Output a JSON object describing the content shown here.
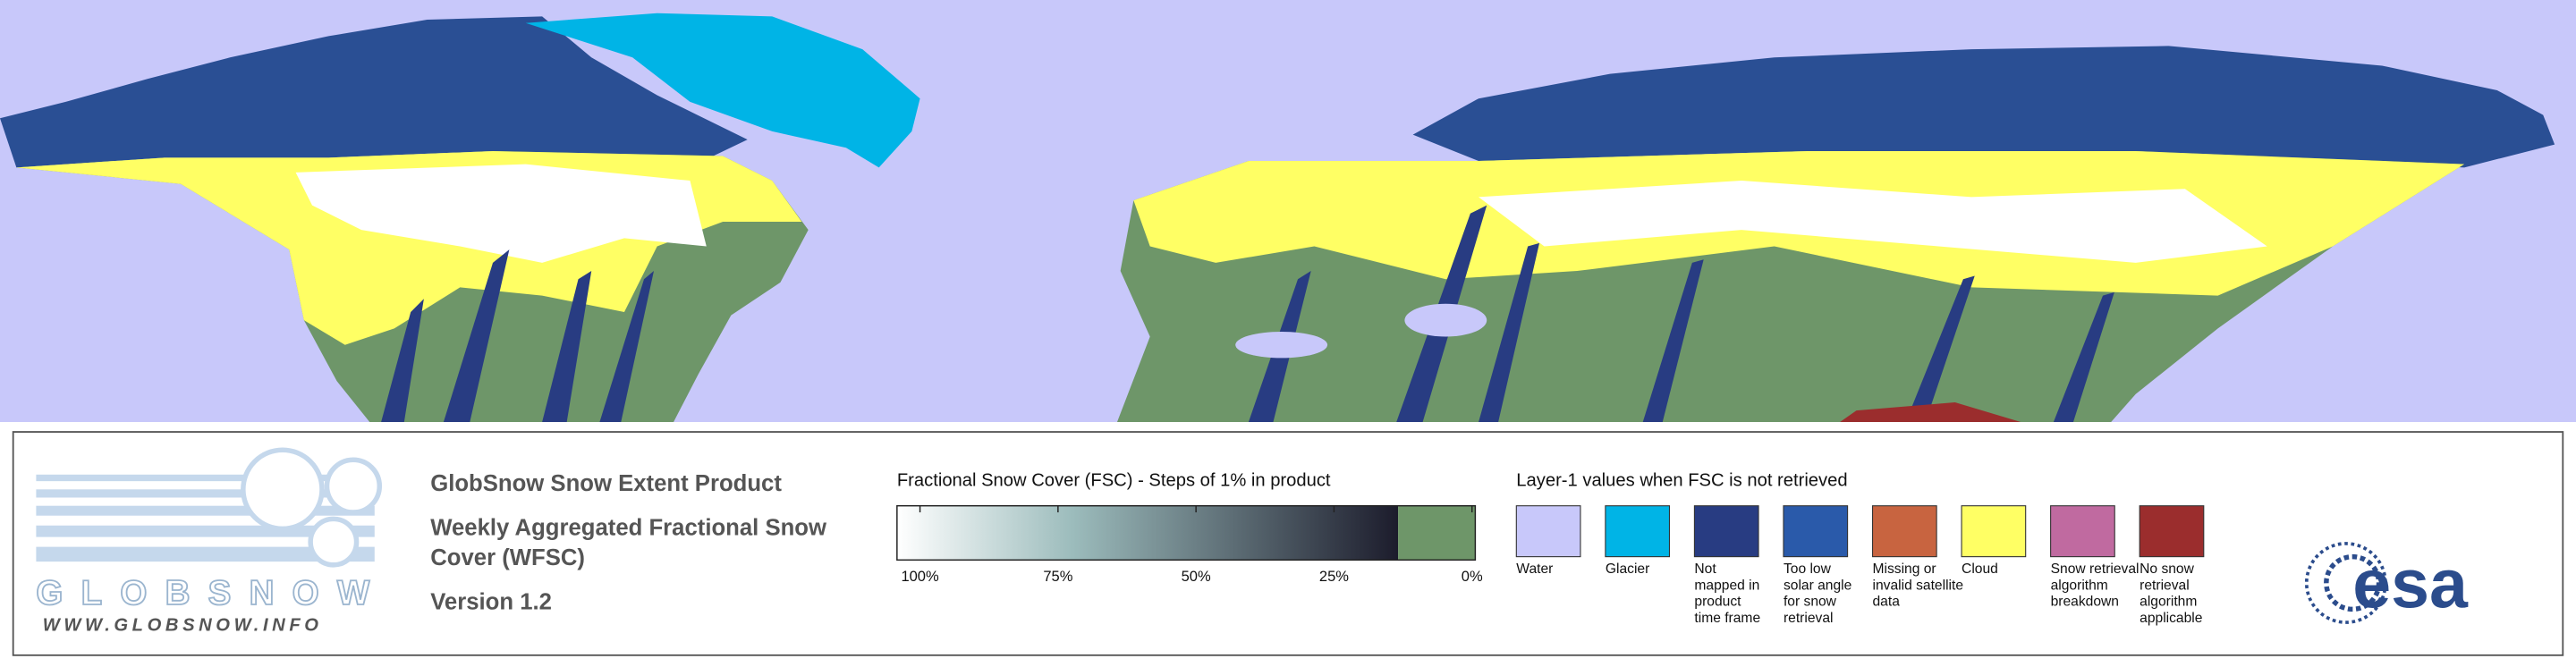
{
  "logo": {
    "name": "GLOBSNOW",
    "url": "WWW.GLOBSNOW.INFO"
  },
  "product": {
    "title": "GlobSnow Snow Extent Product",
    "subtitle_lines": [
      "Weekly Aggregated Fractional Snow",
      "Cover (WFSC)"
    ],
    "version": "Version 1.2"
  },
  "fsc_legend": {
    "title": "Fractional Snow Cover (FSC) - Steps of 1% in product",
    "range": [
      100,
      0
    ],
    "ticks": [
      {
        "value": 100,
        "label": "100%"
      },
      {
        "value": 75,
        "label": "75%"
      },
      {
        "value": 50,
        "label": "50%"
      },
      {
        "value": 25,
        "label": "25%"
      },
      {
        "value": 0,
        "label": "0%"
      }
    ],
    "low_color": "#ffffff",
    "high_color": "#1c1c2c",
    "snow_free_color": "#6e9669"
  },
  "layer1_legend": {
    "title": "Layer-1 values when FSC is not retrieved",
    "items": [
      {
        "label": [
          "Water"
        ],
        "color": "#c8c8fa"
      },
      {
        "label": [
          "Glacier"
        ],
        "color": "#00b4e6"
      },
      {
        "label": [
          "Not",
          "mapped in",
          "product",
          "time frame"
        ],
        "color": "#283c82"
      },
      {
        "label": [
          "Too low",
          "solar angle",
          "for snow",
          "retrieval"
        ],
        "color": "#2a5aaa"
      },
      {
        "label": [
          "Missing or",
          "invalid satellite",
          "data"
        ],
        "color": "#c86440"
      },
      {
        "label": [
          "Cloud"
        ],
        "color": "#ffff64"
      },
      {
        "label": [
          "Snow retrieval",
          "algorithm",
          "breakdown"
        ],
        "color": "#c06aa0"
      },
      {
        "label": [
          "No snow",
          "retrieval",
          "algorithm",
          "applicable"
        ],
        "color": "#9b2d2d"
      }
    ]
  },
  "esa_logo": "esa"
}
